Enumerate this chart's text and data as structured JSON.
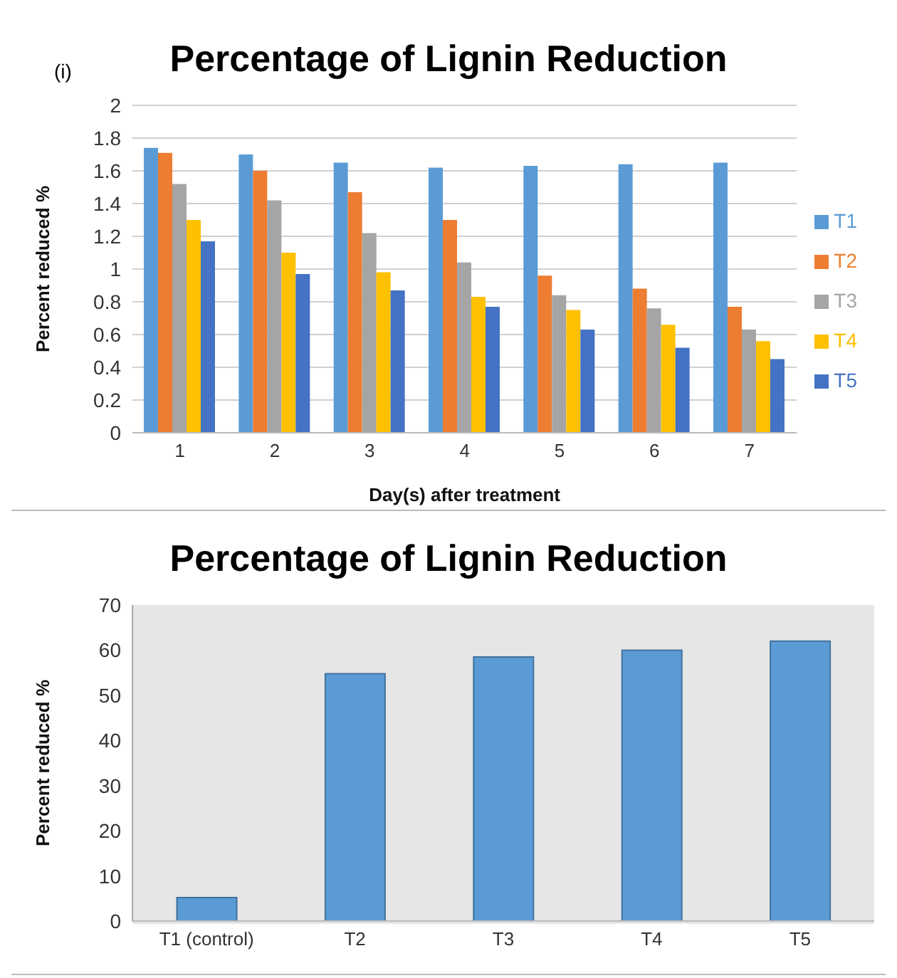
{
  "chart_data": [
    {
      "type": "bar",
      "title": "Percentage of Lignin Reduction",
      "annotations": [
        "(i)"
      ],
      "xlabel": "Day(s) after treatment",
      "ylabel": "Percent reduced %",
      "categories": [
        "1",
        "2",
        "3",
        "4",
        "5",
        "6",
        "7"
      ],
      "series": [
        {
          "name": "T1",
          "color": "#5b9bd5",
          "values": [
            1.74,
            1.7,
            1.65,
            1.62,
            1.63,
            1.64,
            1.65
          ]
        },
        {
          "name": "T2",
          "color": "#ed7d31",
          "values": [
            1.71,
            1.6,
            1.47,
            1.3,
            0.96,
            0.88,
            0.77
          ]
        },
        {
          "name": "T3",
          "color": "#a5a5a5",
          "values": [
            1.52,
            1.42,
            1.22,
            1.04,
            0.84,
            0.76,
            0.63
          ]
        },
        {
          "name": "T4",
          "color": "#ffc000",
          "values": [
            1.3,
            1.1,
            0.98,
            0.83,
            0.75,
            0.66,
            0.56
          ]
        },
        {
          "name": "T5",
          "color": "#4472c4",
          "values": [
            1.17,
            0.97,
            0.87,
            0.77,
            0.63,
            0.52,
            0.45
          ]
        }
      ],
      "ylim": [
        0,
        2
      ],
      "yticks": [
        0,
        0.2,
        0.4,
        0.6,
        0.8,
        1,
        1.2,
        1.4,
        1.6,
        1.8,
        2
      ],
      "grid": "y",
      "legend": "right"
    },
    {
      "type": "bar",
      "title": "Percentage of Lignin Reduction",
      "ylabel": "Percent reduced %",
      "categories": [
        "T1 (control)",
        "T2",
        "T3",
        "T4",
        "T5"
      ],
      "values": [
        5.2,
        54.8,
        58.5,
        60,
        62
      ],
      "color": "#5b9bd5",
      "ylim": [
        0,
        70
      ],
      "yticks": [
        0,
        10,
        20,
        30,
        40,
        50,
        60,
        70
      ]
    }
  ]
}
